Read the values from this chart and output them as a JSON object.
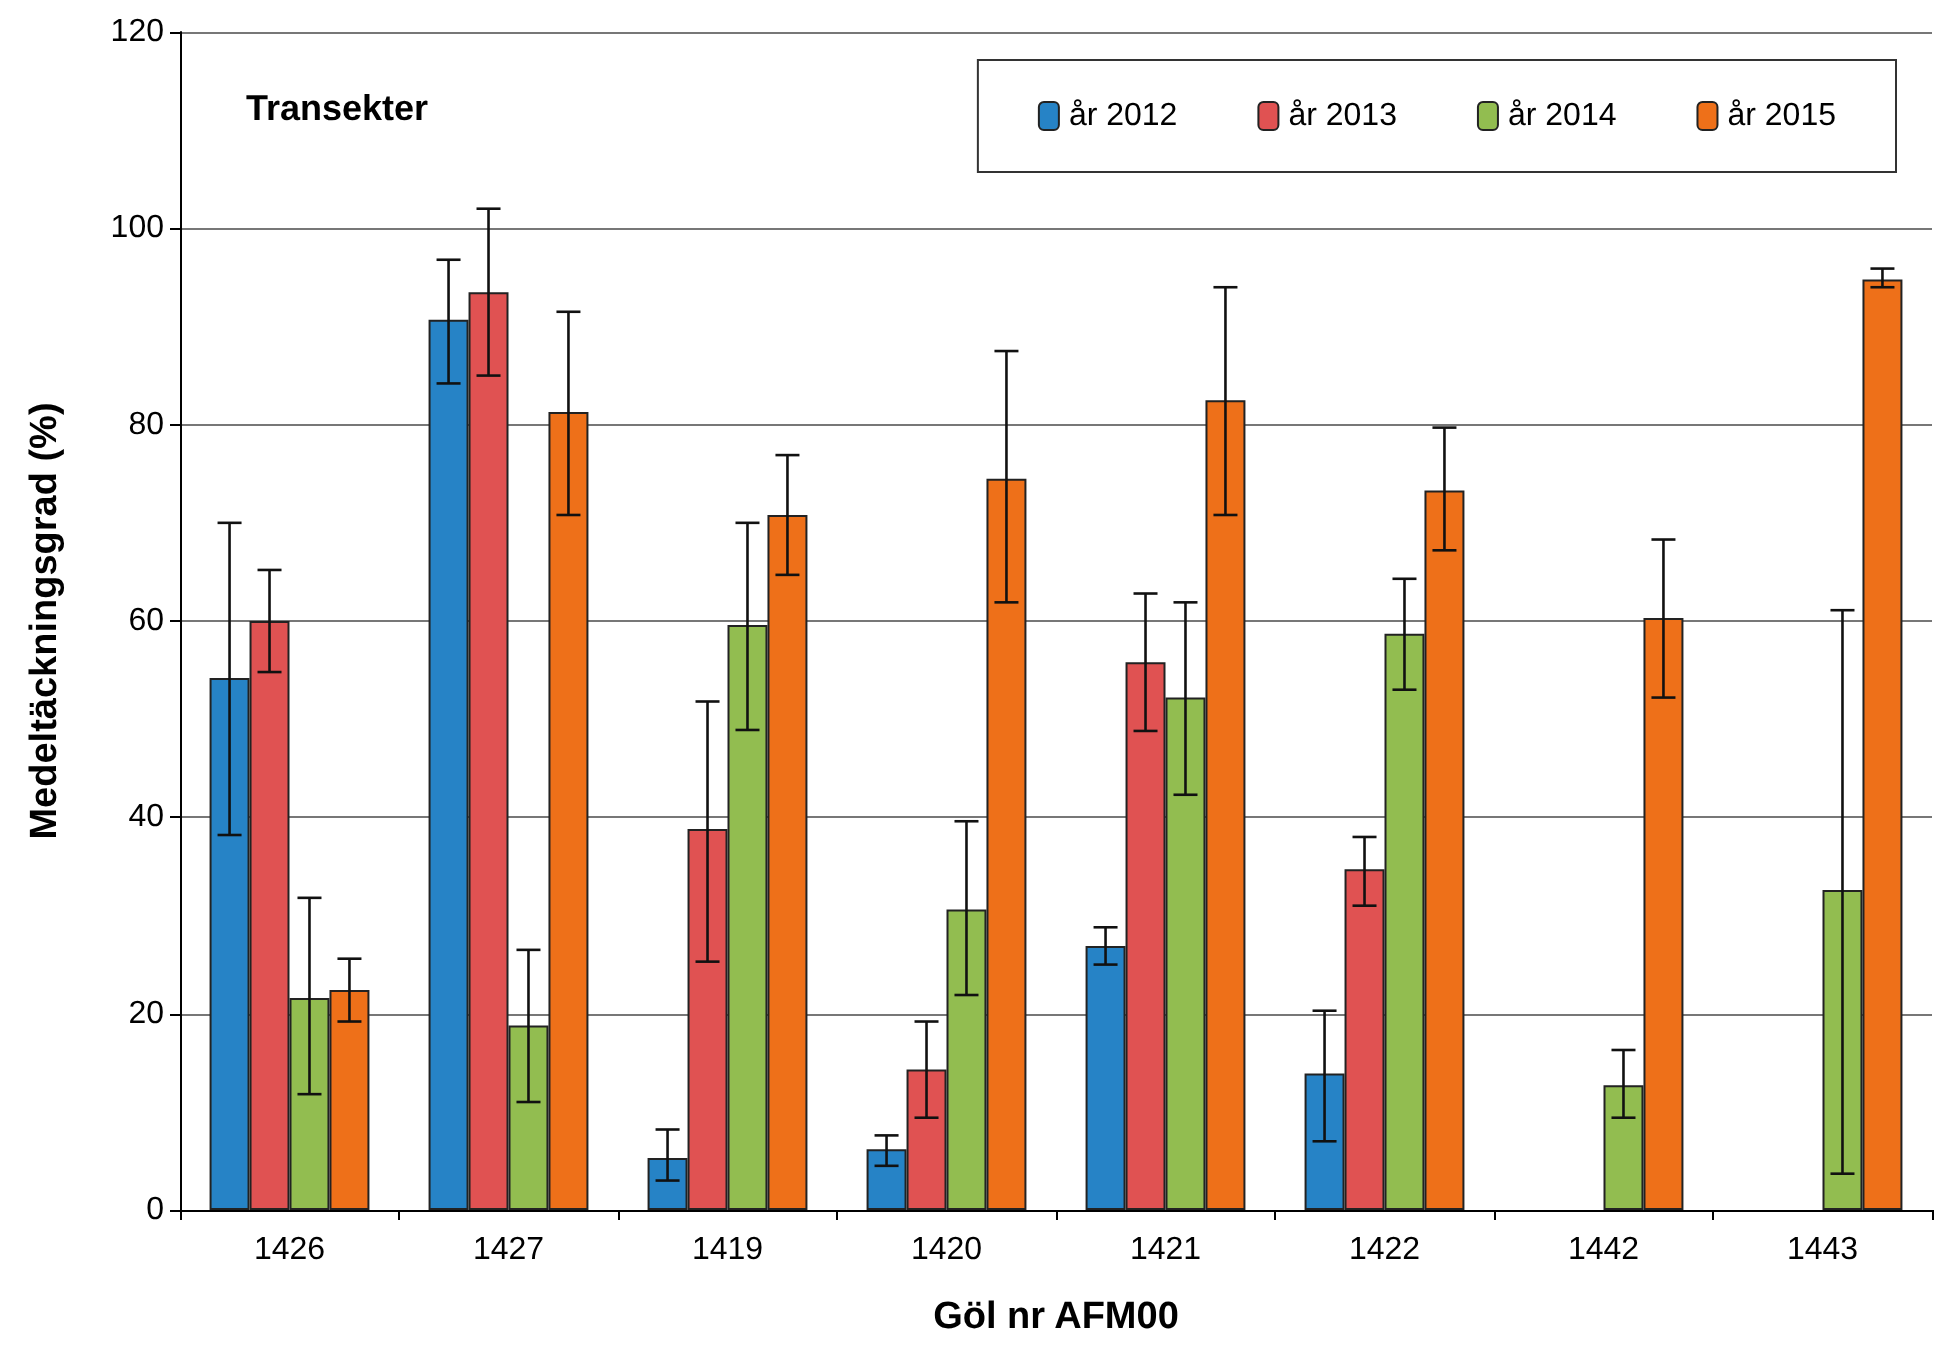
{
  "chart_data": {
    "type": "bar",
    "xlabel": "Göl nr AFM00",
    "ylabel": "Medeltäckningsgrad (%)",
    "annotations": [
      "Transekter"
    ],
    "categories": [
      "1426",
      "1427",
      "1419",
      "1420",
      "1421",
      "1422",
      "1442",
      "1443"
    ],
    "series": [
      {
        "name": "år 2012",
        "color": "#2683c6",
        "values": [
          54.2,
          90.7,
          5.3,
          6.2,
          26.9,
          13.9,
          null,
          null
        ],
        "errors": [
          [
            38.2,
            70
          ],
          [
            84.2,
            96.8
          ],
          [
            3,
            8.2
          ],
          [
            4.5,
            7.6
          ],
          [
            25,
            28.8
          ],
          [
            7,
            20.3
          ],
          null,
          null
        ]
      },
      {
        "name": "år 2013",
        "color": "#e05252",
        "values": [
          60,
          93.5,
          38.8,
          14.3,
          55.8,
          34.7,
          null,
          null
        ],
        "errors": [
          [
            54.8,
            65.2
          ],
          [
            85,
            102
          ],
          [
            25.3,
            51.8
          ],
          [
            9.4,
            19.2
          ],
          [
            48.8,
            62.8
          ],
          [
            31,
            38
          ],
          null,
          null
        ]
      },
      {
        "name": "år 2014",
        "color": "#92bd50",
        "values": [
          21.6,
          18.8,
          59.6,
          30.6,
          52.2,
          58.7,
          12.7,
          32.6
        ],
        "errors": [
          [
            11.8,
            31.8
          ],
          [
            11,
            26.5
          ],
          [
            48.9,
            70
          ],
          [
            21.9,
            39.6
          ],
          [
            42.3,
            61.9
          ],
          [
            53,
            64.3
          ],
          [
            9.4,
            16.3
          ],
          [
            3.7,
            61.1
          ]
        ]
      },
      {
        "name": "år 2015",
        "color": "#ee7019",
        "values": [
          22.4,
          81.3,
          70.8,
          74.5,
          82.5,
          73.3,
          60.3,
          94.8
        ],
        "errors": [
          [
            19.2,
            25.6
          ],
          [
            70.8,
            91.5
          ],
          [
            64.7,
            76.9
          ],
          [
            61.9,
            87.5
          ],
          [
            70.8,
            94
          ],
          [
            67.2,
            79.7
          ],
          [
            52.2,
            68.3
          ],
          [
            94,
            95.9
          ]
        ]
      }
    ],
    "ylim": [
      0,
      120
    ],
    "yticks": [
      0,
      20,
      40,
      60,
      80,
      100,
      120
    ],
    "grid": "y",
    "legend": "top right"
  }
}
